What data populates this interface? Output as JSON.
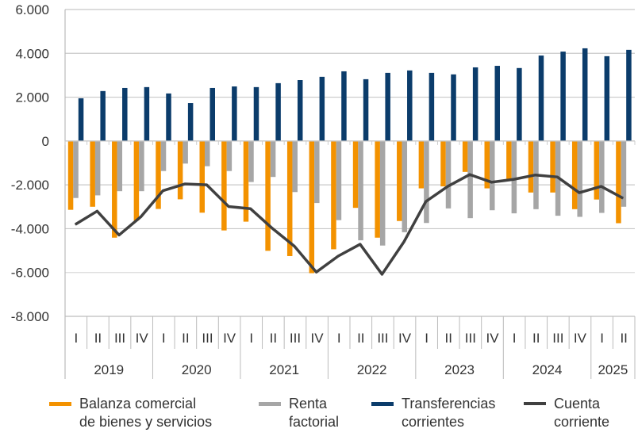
{
  "chart_data": {
    "type": "bar",
    "title": "",
    "xlabel": "",
    "ylabel": "",
    "ylim": [
      -8000,
      6000
    ],
    "yticks": [
      6000,
      4000,
      2000,
      0,
      -2000,
      -4000,
      -6000,
      -8000
    ],
    "ytick_labels": [
      "6.000",
      "4.000",
      "2.000",
      "0",
      "-2.000",
      "-4.000",
      "-6.000",
      "-8.000"
    ],
    "grid": true,
    "legend_position": "bottom",
    "categories": [
      "I",
      "II",
      "III",
      "IV",
      "I",
      "II",
      "III",
      "IV",
      "I",
      "II",
      "III",
      "IV",
      "I",
      "II",
      "III",
      "IV",
      "I",
      "II",
      "III",
      "IV",
      "I",
      "II",
      "III",
      "IV",
      "I",
      "II"
    ],
    "years": [
      {
        "label": "2019",
        "quarters": 4
      },
      {
        "label": "2020",
        "quarters": 4
      },
      {
        "label": "2021",
        "quarters": 4
      },
      {
        "label": "2022",
        "quarters": 4
      },
      {
        "label": "2023",
        "quarters": 4
      },
      {
        "label": "2024",
        "quarters": 4
      },
      {
        "label": "2025",
        "quarters": 2
      }
    ],
    "series": [
      {
        "name": "Balanza comercial de bienes y servicios",
        "name_lines": [
          "Balanza comercial",
          "de bienes y servicios"
        ],
        "type": "bar",
        "color": "#F39200",
        "values": [
          -3140,
          -3000,
          -4410,
          -3630,
          -3100,
          -2660,
          -3270,
          -4080,
          -3680,
          -5010,
          -5250,
          -6030,
          -4940,
          -3050,
          -4410,
          -3650,
          -2160,
          -2070,
          -1410,
          -2160,
          -1740,
          -2350,
          -2350,
          -3110,
          -2670,
          -3750
        ]
      },
      {
        "name": "Renta factorial",
        "name_lines": [
          "Renta",
          "factorial"
        ],
        "type": "bar",
        "color": "#A6A6A6",
        "values": [
          -2600,
          -2480,
          -2290,
          -2290,
          -1370,
          -1030,
          -1150,
          -1370,
          -1870,
          -1640,
          -2330,
          -2830,
          -3610,
          -4530,
          -4770,
          -4160,
          -3740,
          -3075,
          -3520,
          -3160,
          -3300,
          -3110,
          -3410,
          -3460,
          -3280,
          -3000
        ]
      },
      {
        "name": "Transferencias corrientes",
        "name_lines": [
          "Transferencias",
          "corrientes"
        ],
        "type": "bar",
        "color": "#0B3C6B",
        "values": [
          1950,
          2280,
          2420,
          2460,
          2170,
          1730,
          2420,
          2490,
          2460,
          2640,
          2780,
          2930,
          3180,
          2820,
          3110,
          3220,
          3110,
          3040,
          3360,
          3430,
          3330,
          3900,
          4080,
          4230,
          3870,
          4160
        ]
      },
      {
        "name": "Cuenta corriente",
        "name_lines": [
          "Cuenta",
          "corriente"
        ],
        "type": "line",
        "color": "#404040",
        "values": [
          -3810,
          -3200,
          -4290,
          -3450,
          -2270,
          -1960,
          -2000,
          -2990,
          -3090,
          -3990,
          -4800,
          -5980,
          -5250,
          -4710,
          -6080,
          -4600,
          -2760,
          -2070,
          -1530,
          -1880,
          -1750,
          -1550,
          -1640,
          -2360,
          -2070,
          -2610
        ]
      }
    ]
  }
}
